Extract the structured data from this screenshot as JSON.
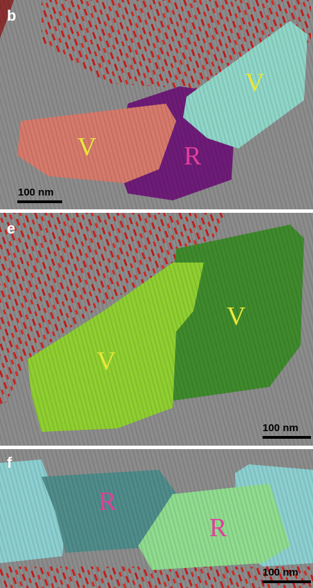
{
  "panels": [
    {
      "label": "b",
      "annotations": [
        "V",
        "R",
        "V"
      ],
      "scale_bar": "100 nm"
    },
    {
      "label": "e",
      "annotations": [
        "V",
        "V"
      ],
      "scale_bar": "100 nm"
    },
    {
      "label": "f",
      "annotations": [
        "R",
        "R"
      ],
      "scale_bar": "100 nm"
    }
  ]
}
